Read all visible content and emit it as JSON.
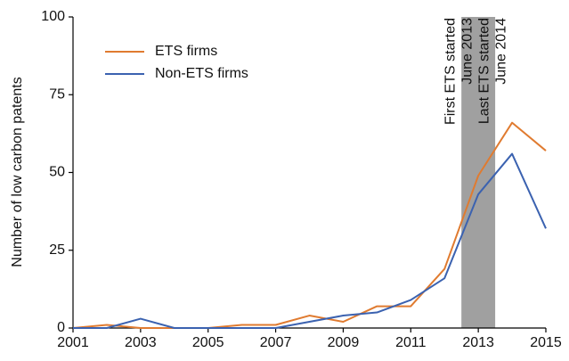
{
  "chart_data": {
    "type": "line",
    "y_label": "Number of low carbon patents",
    "x": [
      2001,
      2002,
      2003,
      2004,
      2005,
      2006,
      2007,
      2008,
      2009,
      2010,
      2011,
      2012,
      2013,
      2014,
      2015
    ],
    "series": [
      {
        "name": "ETS firms",
        "color": "#e07b30",
        "values": [
          0,
          1,
          0,
          0,
          0,
          1,
          1,
          4,
          2,
          7,
          7,
          19,
          49,
          66,
          57
        ]
      },
      {
        "name": "Non-ETS firms",
        "color": "#3b62b0",
        "values": [
          0,
          0,
          3,
          0,
          0,
          0,
          0,
          2,
          4,
          5,
          9,
          16,
          43,
          56,
          32
        ]
      }
    ],
    "xlim": [
      2001,
      2015
    ],
    "xticks": [
      2001,
      2003,
      2005,
      2007,
      2009,
      2011,
      2013,
      2015
    ],
    "ylim": [
      0,
      100
    ],
    "yticks": [
      0,
      25,
      50,
      75,
      100
    ],
    "shaded_span": [
      2012.5,
      2013.5
    ],
    "shade_color": "#a0a0a0",
    "annotations": [
      [
        "First ETS started",
        "June 2013"
      ],
      [
        "Last ETS started",
        "June 2014"
      ]
    ],
    "legend": "top-left"
  }
}
